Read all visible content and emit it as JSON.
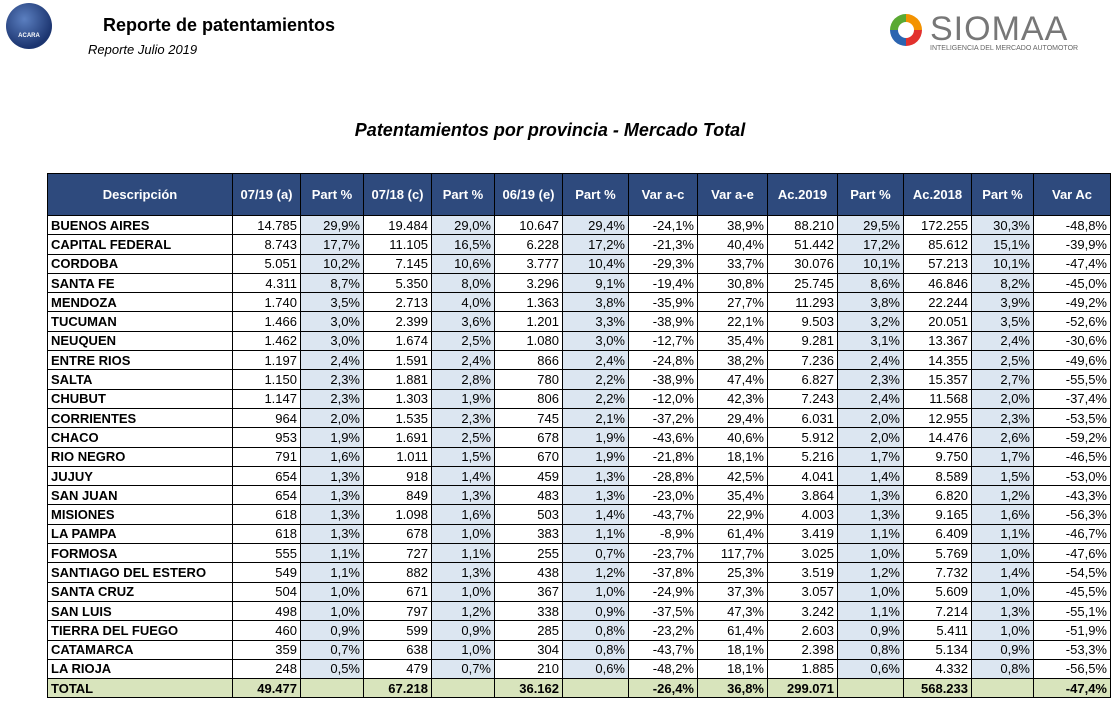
{
  "header": {
    "title": "Reporte de patentamientos",
    "subtitle": "Reporte Julio 2019",
    "left_logo": "ACARA",
    "right_logo": {
      "name": "SIOMAA",
      "tagline": "INTELIGENCIA DEL MERCADO AUTOMOTOR"
    }
  },
  "table": {
    "title": "Patentamientos por provincia - Mercado Total",
    "columns": [
      "Descripción",
      "07/19 (a)",
      "Part %",
      "07/18 (c)",
      "Part %",
      "06/19 (e)",
      "Part %",
      "Var a-c",
      "Var a-e",
      "Ac.2019",
      "Part %",
      "Ac.2018",
      "Part %",
      "Var Ac"
    ],
    "rows": [
      [
        "BUENOS AIRES",
        "14.785",
        "29,9%",
        "19.484",
        "29,0%",
        "10.647",
        "29,4%",
        "-24,1%",
        "38,9%",
        "88.210",
        "29,5%",
        "172.255",
        "30,3%",
        "-48,8%"
      ],
      [
        "CAPITAL FEDERAL",
        "8.743",
        "17,7%",
        "11.105",
        "16,5%",
        "6.228",
        "17,2%",
        "-21,3%",
        "40,4%",
        "51.442",
        "17,2%",
        "85.612",
        "15,1%",
        "-39,9%"
      ],
      [
        "CORDOBA",
        "5.051",
        "10,2%",
        "7.145",
        "10,6%",
        "3.777",
        "10,4%",
        "-29,3%",
        "33,7%",
        "30.076",
        "10,1%",
        "57.213",
        "10,1%",
        "-47,4%"
      ],
      [
        "SANTA FE",
        "4.311",
        "8,7%",
        "5.350",
        "8,0%",
        "3.296",
        "9,1%",
        "-19,4%",
        "30,8%",
        "25.745",
        "8,6%",
        "46.846",
        "8,2%",
        "-45,0%"
      ],
      [
        "MENDOZA",
        "1.740",
        "3,5%",
        "2.713",
        "4,0%",
        "1.363",
        "3,8%",
        "-35,9%",
        "27,7%",
        "11.293",
        "3,8%",
        "22.244",
        "3,9%",
        "-49,2%"
      ],
      [
        "TUCUMAN",
        "1.466",
        "3,0%",
        "2.399",
        "3,6%",
        "1.201",
        "3,3%",
        "-38,9%",
        "22,1%",
        "9.503",
        "3,2%",
        "20.051",
        "3,5%",
        "-52,6%"
      ],
      [
        "NEUQUEN",
        "1.462",
        "3,0%",
        "1.674",
        "2,5%",
        "1.080",
        "3,0%",
        "-12,7%",
        "35,4%",
        "9.281",
        "3,1%",
        "13.367",
        "2,4%",
        "-30,6%"
      ],
      [
        "ENTRE RIOS",
        "1.197",
        "2,4%",
        "1.591",
        "2,4%",
        "866",
        "2,4%",
        "-24,8%",
        "38,2%",
        "7.236",
        "2,4%",
        "14.355",
        "2,5%",
        "-49,6%"
      ],
      [
        "SALTA",
        "1.150",
        "2,3%",
        "1.881",
        "2,8%",
        "780",
        "2,2%",
        "-38,9%",
        "47,4%",
        "6.827",
        "2,3%",
        "15.357",
        "2,7%",
        "-55,5%"
      ],
      [
        "CHUBUT",
        "1.147",
        "2,3%",
        "1.303",
        "1,9%",
        "806",
        "2,2%",
        "-12,0%",
        "42,3%",
        "7.243",
        "2,4%",
        "11.568",
        "2,0%",
        "-37,4%"
      ],
      [
        "CORRIENTES",
        "964",
        "2,0%",
        "1.535",
        "2,3%",
        "745",
        "2,1%",
        "-37,2%",
        "29,4%",
        "6.031",
        "2,0%",
        "12.955",
        "2,3%",
        "-53,5%"
      ],
      [
        "CHACO",
        "953",
        "1,9%",
        "1.691",
        "2,5%",
        "678",
        "1,9%",
        "-43,6%",
        "40,6%",
        "5.912",
        "2,0%",
        "14.476",
        "2,6%",
        "-59,2%"
      ],
      [
        "RIO NEGRO",
        "791",
        "1,6%",
        "1.011",
        "1,5%",
        "670",
        "1,9%",
        "-21,8%",
        "18,1%",
        "5.216",
        "1,7%",
        "9.750",
        "1,7%",
        "-46,5%"
      ],
      [
        "JUJUY",
        "654",
        "1,3%",
        "918",
        "1,4%",
        "459",
        "1,3%",
        "-28,8%",
        "42,5%",
        "4.041",
        "1,4%",
        "8.589",
        "1,5%",
        "-53,0%"
      ],
      [
        "SAN JUAN",
        "654",
        "1,3%",
        "849",
        "1,3%",
        "483",
        "1,3%",
        "-23,0%",
        "35,4%",
        "3.864",
        "1,3%",
        "6.820",
        "1,2%",
        "-43,3%"
      ],
      [
        "MISIONES",
        "618",
        "1,3%",
        "1.098",
        "1,6%",
        "503",
        "1,4%",
        "-43,7%",
        "22,9%",
        "4.003",
        "1,3%",
        "9.165",
        "1,6%",
        "-56,3%"
      ],
      [
        "LA PAMPA",
        "618",
        "1,3%",
        "678",
        "1,0%",
        "383",
        "1,1%",
        "-8,9%",
        "61,4%",
        "3.419",
        "1,1%",
        "6.409",
        "1,1%",
        "-46,7%"
      ],
      [
        "FORMOSA",
        "555",
        "1,1%",
        "727",
        "1,1%",
        "255",
        "0,7%",
        "-23,7%",
        "117,7%",
        "3.025",
        "1,0%",
        "5.769",
        "1,0%",
        "-47,6%"
      ],
      [
        "SANTIAGO DEL ESTERO",
        "549",
        "1,1%",
        "882",
        "1,3%",
        "438",
        "1,2%",
        "-37,8%",
        "25,3%",
        "3.519",
        "1,2%",
        "7.732",
        "1,4%",
        "-54,5%"
      ],
      [
        "SANTA CRUZ",
        "504",
        "1,0%",
        "671",
        "1,0%",
        "367",
        "1,0%",
        "-24,9%",
        "37,3%",
        "3.057",
        "1,0%",
        "5.609",
        "1,0%",
        "-45,5%"
      ],
      [
        "SAN LUIS",
        "498",
        "1,0%",
        "797",
        "1,2%",
        "338",
        "0,9%",
        "-37,5%",
        "47,3%",
        "3.242",
        "1,1%",
        "7.214",
        "1,3%",
        "-55,1%"
      ],
      [
        "TIERRA DEL FUEGO",
        "460",
        "0,9%",
        "599",
        "0,9%",
        "285",
        "0,8%",
        "-23,2%",
        "61,4%",
        "2.603",
        "0,9%",
        "5.411",
        "1,0%",
        "-51,9%"
      ],
      [
        "CATAMARCA",
        "359",
        "0,7%",
        "638",
        "1,0%",
        "304",
        "0,8%",
        "-43,7%",
        "18,1%",
        "2.398",
        "0,8%",
        "5.134",
        "0,9%",
        "-53,3%"
      ],
      [
        "LA RIOJA",
        "248",
        "0,5%",
        "479",
        "0,7%",
        "210",
        "0,6%",
        "-48,2%",
        "18,1%",
        "1.885",
        "0,6%",
        "4.332",
        "0,8%",
        "-56,5%"
      ]
    ],
    "total": [
      "TOTAL",
      "49.477",
      null,
      "67.218",
      null,
      "36.162",
      null,
      "-26,4%",
      "36,8%",
      "299.071",
      null,
      "568.233",
      null,
      "-47,4%"
    ]
  }
}
